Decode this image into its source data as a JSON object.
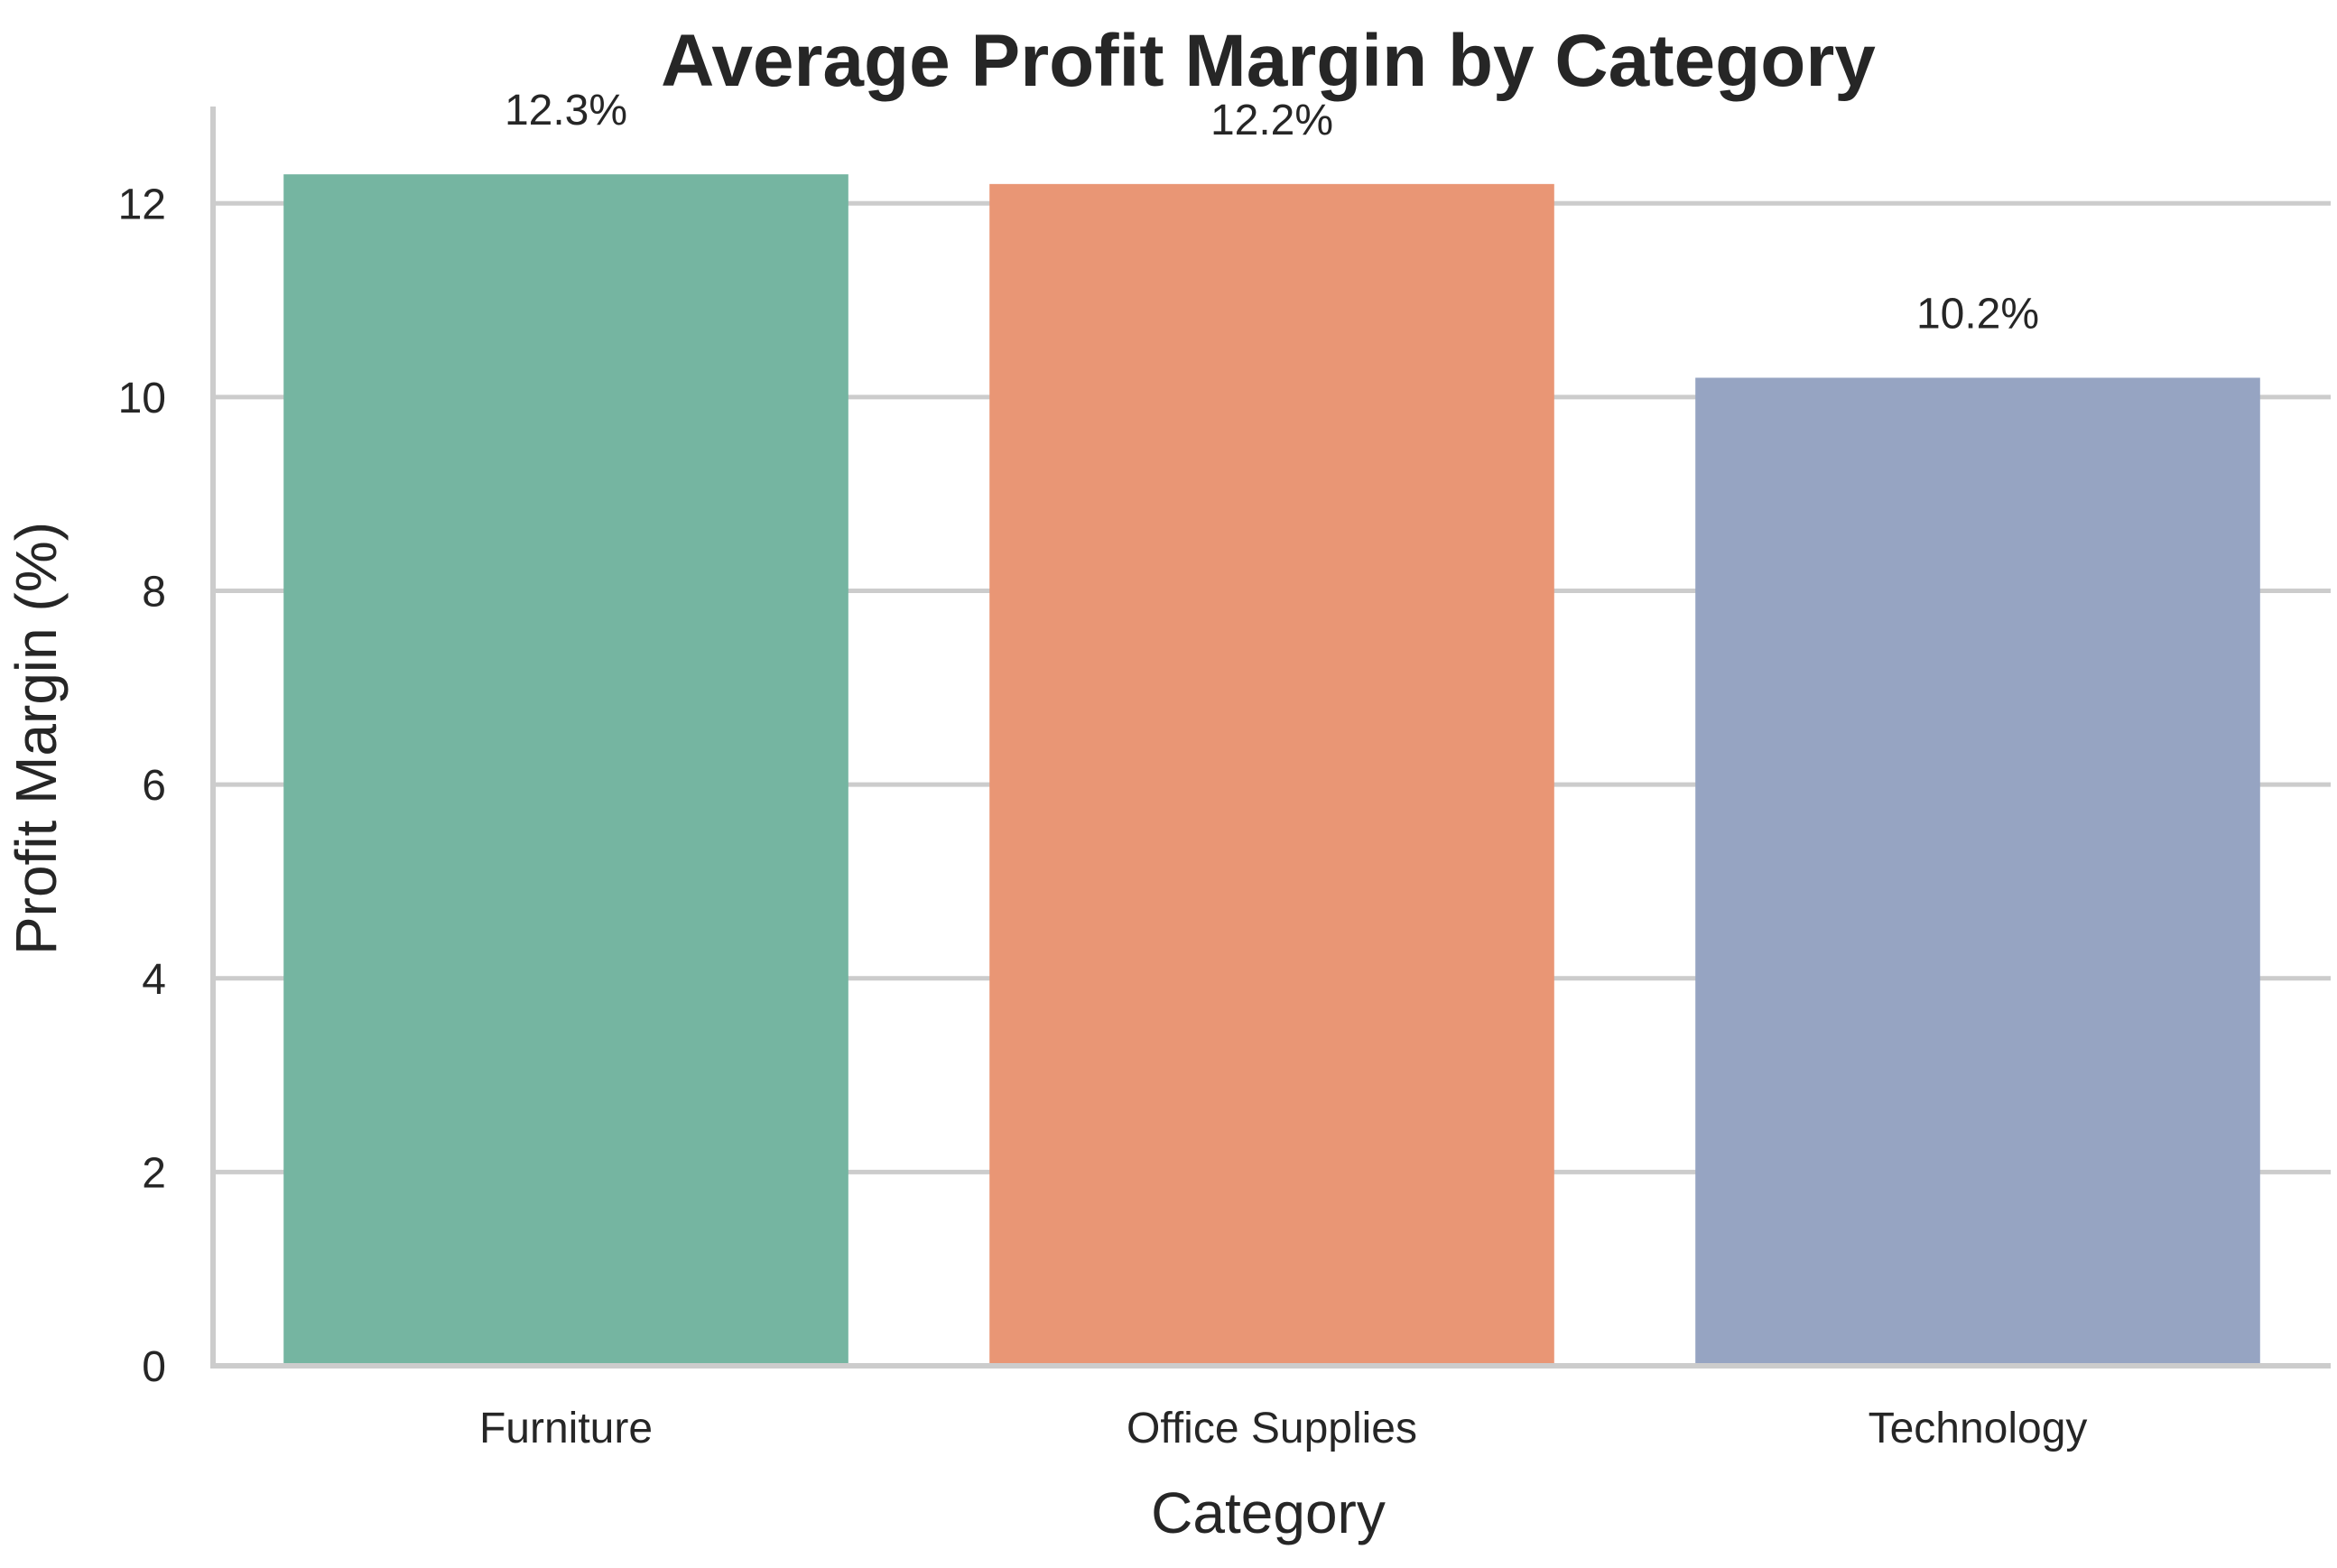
{
  "chart_data": {
    "type": "bar",
    "title": "Average Profit Margin by Category",
    "xlabel": "Category",
    "ylabel": "Profit Margin (%)",
    "categories": [
      "Furniture",
      "Office Supplies",
      "Technology"
    ],
    "values": [
      12.3,
      12.2,
      10.2
    ],
    "data_labels": [
      "12.3%",
      "12.2%",
      "10.2%"
    ],
    "colors": [
      "#75b5a1",
      "#e99675",
      "#96a4c2"
    ],
    "ylim": [
      0,
      13
    ],
    "yticks": [
      0,
      2,
      4,
      6,
      8,
      10,
      12
    ],
    "grid": "horizontal",
    "legend": "none"
  }
}
